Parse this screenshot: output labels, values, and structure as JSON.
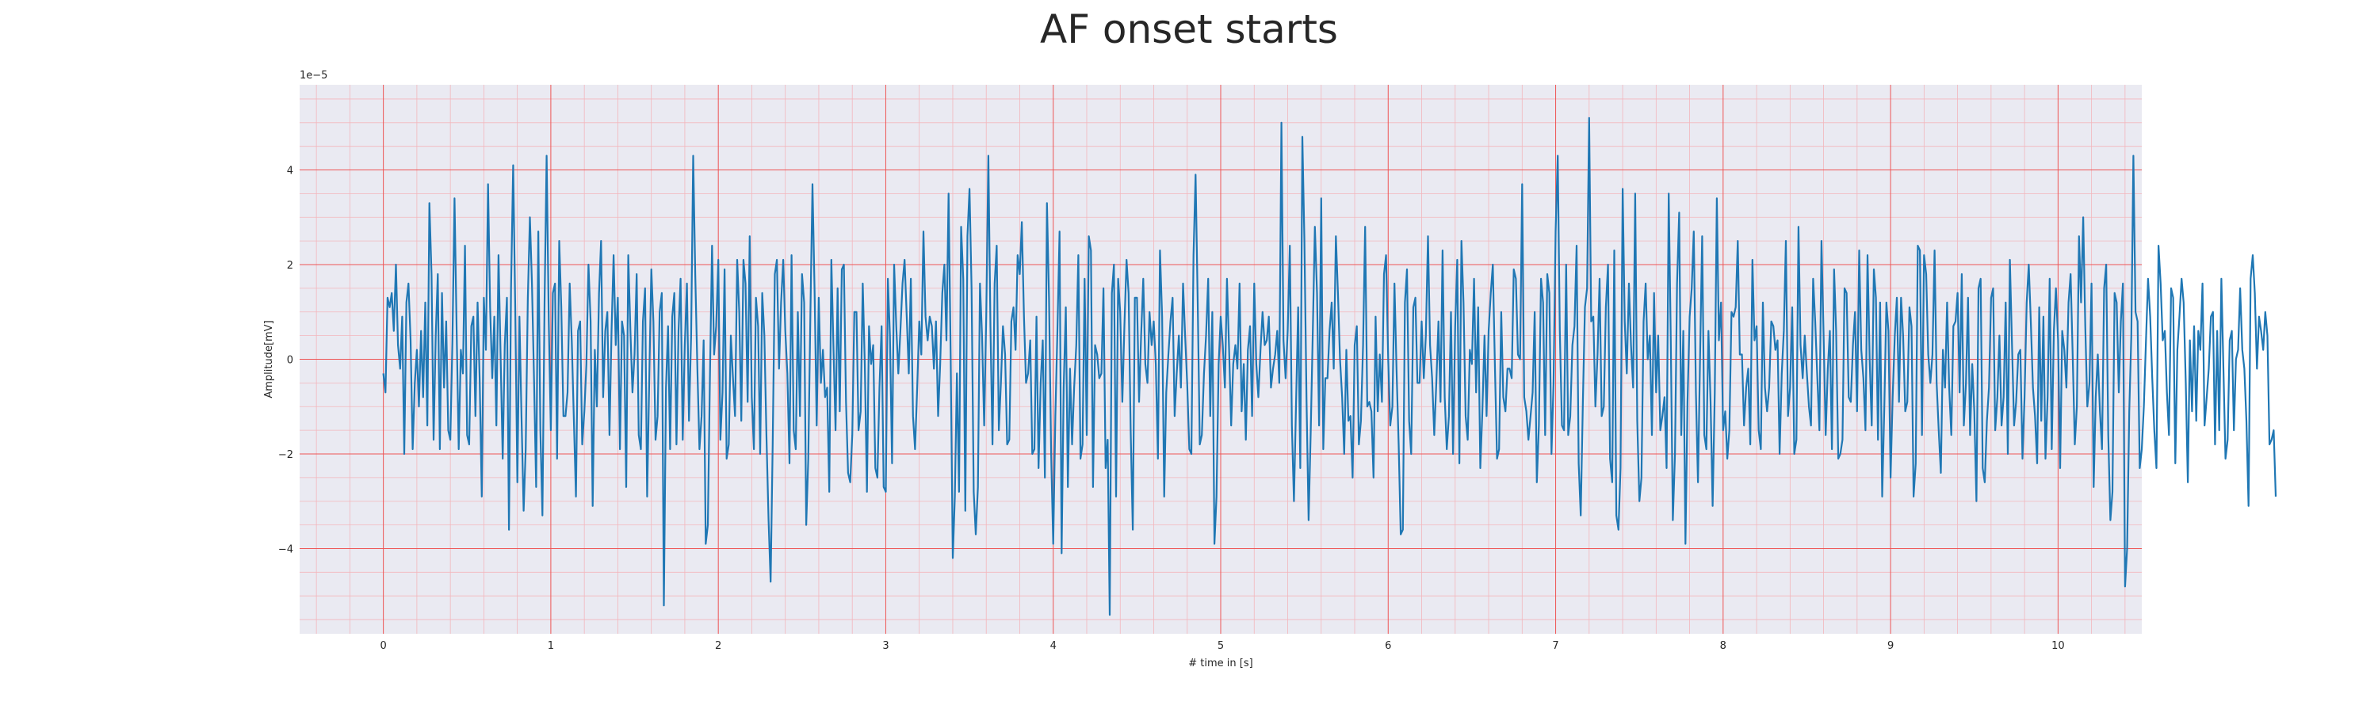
{
  "chart_data": {
    "type": "line",
    "title": "AF onset starts",
    "xlabel": "# time in [s]",
    "ylabel": "Amplitude[mV]",
    "y_offset_text": "1e−5",
    "xlim": [
      -0.5,
      10.5
    ],
    "ylim": [
      -5.8,
      5.8
    ],
    "y_scale_factor": 1e-05,
    "xticks": [
      0,
      1,
      2,
      3,
      4,
      5,
      6,
      7,
      8,
      9,
      10
    ],
    "yticks": [
      -4,
      -2,
      0,
      2,
      4
    ],
    "grid": true,
    "minor_grid": true,
    "colors": {
      "line": "#1f77b4",
      "grid_major": "#ee5555",
      "grid_minor": "#f3b6bc",
      "background": "#eaeaf2"
    },
    "series": [
      {
        "sample_interval_s": 0.0125,
        "values": [
          -0.3,
          -0.7,
          1.3,
          1.1,
          1.4,
          0.6,
          2.0,
          0.3,
          -0.2,
          0.9,
          -2.0,
          1.2,
          1.6,
          0.4,
          -1.9,
          -0.5,
          0.2,
          -1.0,
          0.6,
          -0.8,
          1.2,
          -1.4,
          3.3,
          1.8,
          -1.7,
          0.5,
          1.8,
          -1.9,
          1.4,
          -0.6,
          0.8,
          -1.5,
          -1.7,
          0.4,
          3.4,
          0.6,
          -1.9,
          0.2,
          -0.3,
          2.4,
          -1.6,
          -1.8,
          0.7,
          0.9,
          -1.2,
          1.2,
          -0.4,
          -2.9,
          1.3,
          0.2,
          3.7,
          1.1,
          -0.4,
          0.9,
          -1.4,
          2.2,
          0.1,
          -2.1,
          0.3,
          1.3,
          -3.6,
          1.5,
          4.1,
          1.1,
          -2.6,
          0.9,
          -1.2,
          -3.2,
          -1.9,
          1.3,
          3.0,
          1.6,
          -0.5,
          -2.7,
          2.7,
          -1.5,
          -3.3,
          1.2,
          4.3,
          0.8,
          -1.5,
          1.4,
          1.6,
          -2.1,
          2.5,
          1.1,
          -1.2,
          -1.2,
          -0.7,
          1.6,
          0.4,
          -1.3,
          -2.9,
          0.6,
          0.8,
          -1.8,
          -1.1,
          -0.1,
          2.0,
          0.8,
          -3.1,
          0.2,
          -1.0,
          1.4,
          2.5,
          -0.8,
          0.6,
          1.0,
          -1.6,
          0.6,
          2.2,
          0.3,
          1.3,
          -1.9,
          0.8,
          0.5,
          -2.7,
          2.2,
          0.6,
          -0.7,
          0.1,
          1.8,
          -1.6,
          -1.9,
          0.8,
          1.5,
          -2.9,
          -0.5,
          1.9,
          0.8,
          -1.7,
          -1.2,
          1.0,
          1.4,
          -5.2,
          -0.6,
          0.7,
          -1.9,
          0.9,
          1.4,
          -1.8,
          0.6,
          1.7,
          -1.7,
          0.3,
          1.6,
          -1.3,
          0.5,
          4.3,
          1.8,
          -0.2,
          -1.9,
          -1.2,
          0.4,
          -3.9,
          -3.5,
          -0.4,
          2.4,
          0.1,
          0.7,
          2.1,
          -1.7,
          -0.7,
          1.9,
          -2.1,
          -1.8,
          0.5,
          -0.4,
          -1.2,
          2.1,
          1.0,
          -1.3,
          2.1,
          1.6,
          -0.9,
          2.6,
          -0.8,
          -1.9,
          1.3,
          0.7,
          -2.0,
          1.4,
          0.5,
          -1.6,
          -3.4,
          -4.7,
          -1.8,
          1.8,
          2.1,
          -0.2,
          1.2,
          2.1,
          0.6,
          -0.3,
          -2.2,
          2.2,
          -1.5,
          -1.9,
          1.0,
          -1.2,
          1.8,
          1.2,
          -3.5,
          -2.1,
          1.0,
          3.7,
          1.4,
          -1.4,
          1.3,
          -0.5,
          0.2,
          -0.8,
          -0.6,
          -2.8,
          2.1,
          0.3,
          -1.5,
          1.5,
          -1.1,
          1.9,
          2.0,
          -0.9,
          -2.4,
          -2.6,
          -1.6,
          1.0,
          1.0,
          -1.5,
          -1.1,
          1.6,
          -0.1,
          -2.8,
          0.7,
          -0.1,
          0.3,
          -2.3,
          -2.5,
          -0.6,
          0.7,
          -2.7,
          -2.8,
          1.7,
          0.5,
          -2.2,
          2.0,
          0.7,
          -0.3,
          0.6,
          1.6,
          2.1,
          0.9,
          -0.3,
          1.7,
          -1.2,
          -1.9,
          -0.6,
          0.8,
          0.1,
          2.7,
          0.9,
          0.4,
          0.9,
          0.7,
          -0.2,
          0.8,
          -1.2,
          -0.1,
          1.4,
          2.0,
          0.4,
          3.5,
          0.1,
          -4.2,
          -2.9,
          -0.3,
          -2.8,
          2.8,
          1.7,
          -3.2,
          2.6,
          3.6,
          1.5,
          -2.8,
          -3.7,
          -2.7,
          1.6,
          0.5,
          -1.4,
          0.9,
          4.3,
          0.7,
          -1.8,
          1.6,
          2.4,
          -1.5,
          -0.5,
          0.7,
          0.1,
          -1.8,
          -1.7,
          0.8,
          1.1,
          0.2,
          2.2,
          1.8,
          2.9,
          0.9,
          -0.5,
          -0.3,
          0.4,
          -2.0,
          -1.9,
          0.9,
          -2.3,
          -0.5,
          0.4,
          -2.5,
          3.3,
          1.3,
          -2.0,
          -3.9,
          -1.2,
          0.6,
          2.7,
          -4.1,
          -0.6,
          1.1,
          -2.7,
          -0.2,
          -1.8,
          -0.6,
          0.3,
          2.2,
          -2.1,
          -1.8,
          1.7,
          -1.6,
          2.6,
          2.3,
          -2.7,
          0.3,
          0.1,
          -0.4,
          -0.3,
          1.5,
          -2.3,
          -1.7,
          -5.4,
          1.4,
          2.0,
          -2.9,
          1.7,
          1.0,
          -0.9,
          0.7,
          2.1,
          1.4,
          -1.5,
          -3.6,
          1.3,
          1.3,
          -0.9,
          0.5,
          1.7,
          -0.1,
          -0.5,
          1.0,
          0.3,
          0.8,
          -0.1,
          -2.1,
          2.3,
          0.9,
          -2.9,
          -0.7,
          0.1,
          0.8,
          1.3,
          -1.2,
          -0.3,
          0.5,
          -0.6,
          1.6,
          0.5,
          -0.5,
          -1.9,
          -2.0,
          2.2,
          3.9,
          1.2,
          -1.8,
          -1.6,
          -0.3,
          0.5,
          1.7,
          -1.2,
          1.0,
          -3.9,
          -2.9,
          -0.1,
          0.9,
          0.3,
          -0.6,
          1.7,
          0.2,
          -1.4,
          -0.1,
          0.3,
          -0.2,
          1.6,
          -1.1,
          -0.1,
          -1.7,
          0.2,
          0.7,
          -1.2,
          1.6,
          -0.1,
          -0.8,
          0.2,
          1.0,
          0.3,
          0.4,
          0.9,
          -0.6,
          -0.2,
          0.1,
          0.6,
          -0.5,
          5.0,
          0.4,
          -0.4,
          0.6,
          2.4,
          -1.4,
          -3.0,
          -0.9,
          1.1,
          -2.3,
          4.7,
          2.5,
          -0.9,
          -3.4,
          -1.5,
          0.6,
          2.8,
          1.4,
          -1.4,
          3.4,
          -1.9,
          -0.4,
          -0.4,
          0.6,
          1.2,
          -0.2,
          2.6,
          1.4,
          0.0,
          -0.8,
          -2.0,
          0.2,
          -1.3,
          -1.2,
          -2.5,
          0.3,
          0.7,
          -1.8,
          -1.3,
          0.3,
          2.8,
          -1.0,
          -0.9,
          -1.1,
          -2.5,
          0.9,
          -1.1,
          0.1,
          -0.9,
          1.8,
          2.2,
          0.0,
          -1.4,
          -1.0,
          1.6,
          -0.2,
          -1.8,
          -3.7,
          -3.6,
          1.2,
          1.9,
          -1.3,
          -2.0,
          1.1,
          1.3,
          -0.5,
          -0.5,
          0.8,
          -0.4,
          0.5,
          2.6,
          0.3,
          -0.4,
          -1.6,
          -0.5,
          0.8,
          -0.9,
          2.3,
          -0.8,
          -1.9,
          -1.2,
          1.0,
          -2.0,
          0.7,
          2.1,
          -2.2,
          2.5,
          1.2,
          -1.2,
          -1.7,
          0.2,
          -0.1,
          1.7,
          -0.7,
          1.1,
          -2.3,
          -1.1,
          0.5,
          -1.2,
          0.6,
          1.4,
          2.0,
          -0.2,
          -2.1,
          -1.9,
          1.0,
          -0.8,
          -1.1,
          -0.2,
          -0.2,
          -0.4,
          1.9,
          1.7,
          0.1,
          0.0,
          3.7,
          -0.8,
          -1.1,
          -1.7,
          -1.2,
          -0.7,
          1.0,
          -2.6,
          -1.4,
          1.7,
          1.2,
          -1.6,
          1.8,
          1.4,
          -2.0,
          -0.5,
          2.7,
          4.3,
          0.6,
          -1.4,
          -1.5,
          2.0,
          -1.6,
          -1.2,
          0.3,
          0.7,
          2.4,
          -2.2,
          -3.3,
          -0.9,
          1.1,
          1.5,
          5.1,
          0.8,
          0.9,
          -1.0,
          0.1,
          1.7,
          -1.2,
          -1.0,
          1.1,
          2.0,
          -2.1,
          -2.6,
          2.3,
          -3.3,
          -3.6,
          -2.3,
          3.6,
          0.8,
          -0.3,
          1.6,
          0.3,
          -0.6,
          3.5,
          -1.3,
          -3.0,
          -2.5,
          0.8,
          1.6,
          0.0,
          0.5,
          -1.6,
          1.4,
          -0.7,
          0.5,
          -1.5,
          -1.2,
          -0.8,
          -2.3,
          3.5,
          0.4,
          -3.4,
          -2.0,
          1.6,
          3.1,
          -1.6,
          0.6,
          -3.9,
          -0.9,
          0.9,
          1.5,
          2.7,
          -0.7,
          -2.6,
          0.1,
          2.6,
          -1.6,
          -1.9,
          0.6,
          -0.9,
          -3.1,
          -0.7,
          3.4,
          0.4,
          1.2,
          -1.5,
          -1.1,
          -2.1,
          -1.5,
          1.0,
          0.9,
          1.1,
          2.5,
          0.1,
          0.1,
          -1.4,
          -0.6,
          -0.2,
          -1.8,
          2.1,
          0.4,
          0.7,
          -1.5,
          -1.9,
          1.2,
          -0.6,
          -1.1,
          -0.6,
          0.8,
          0.7,
          0.2,
          0.4,
          -2.0,
          -0.3,
          0.6,
          2.5,
          -1.2,
          -0.6,
          1.1,
          -2.0,
          -1.7,
          2.8,
          0.3,
          -0.4,
          0.5,
          -0.3,
          -1.0,
          -1.4,
          1.7,
          0.8,
          -0.4,
          -1.5,
          2.5,
          0.5,
          -1.6,
          -0.2,
          0.6,
          -1.9,
          1.9,
          0.6,
          -2.1,
          -2.0,
          -1.7,
          1.5,
          1.4,
          -0.8,
          -0.9,
          0.3,
          1.0,
          -1.1,
          2.3,
          0.2,
          -0.4,
          -1.5,
          2.2,
          0.0,
          -1.4,
          1.9,
          1.3,
          -1.7,
          1.2,
          -2.9,
          -1.0,
          1.2,
          0.6,
          -2.5,
          -0.8,
          0.5,
          1.3,
          -0.9,
          1.3,
          0.5,
          -1.1,
          -0.9,
          1.1,
          0.7,
          -2.9,
          -2.2,
          2.4,
          2.3,
          -1.6,
          2.2,
          1.8,
          0.1,
          -0.5,
          0.1,
          2.3,
          -0.5,
          -1.5,
          -2.4,
          0.2,
          -0.6,
          1.2,
          -0.6,
          -1.6,
          0.7,
          0.8,
          1.4,
          -0.7,
          1.8,
          -1.4,
          -0.5,
          1.3,
          -1.6,
          -0.1,
          -1.1,
          -3.0,
          1.5,
          1.7,
          -2.3,
          -2.6,
          -1.3,
          -0.6,
          1.3,
          1.5,
          -1.5,
          -0.8,
          0.5,
          -1.4,
          -0.8,
          1.2,
          -2.0,
          2.1,
          0.3,
          -1.4,
          -0.9,
          0.1,
          0.2,
          -2.1,
          -0.8,
          1.2,
          2.0,
          0.8,
          -0.6,
          -1.2,
          -2.2,
          1.1,
          -1.3,
          0.9,
          -2.1,
          -0.8,
          1.7,
          -1.9,
          0.6,
          1.5,
          0.4,
          -2.3,
          0.6,
          0.2,
          -0.6,
          1.2,
          1.8,
          0.1,
          -1.8,
          -1.0,
          2.6,
          1.2,
          3.0,
          0.7,
          -1.0,
          -0.5,
          1.6,
          -2.7,
          -0.8,
          0.1,
          -1.1,
          -1.9,
          1.5,
          2.0,
          -1.6,
          -3.4,
          -2.8,
          1.4,
          1.2,
          -0.7,
          0.8,
          1.6,
          -4.8,
          -4.0,
          -1.1,
          0.5,
          4.3,
          1.0,
          0.8,
          -2.3,
          -1.9,
          -1.0,
          0.4,
          1.7,
          0.9,
          -0.4,
          -1.5,
          -2.3,
          2.4,
          1.6,
          0.4,
          0.6,
          -0.7,
          -1.6,
          1.5,
          1.3,
          -2.2,
          0.2,
          0.9,
          1.7,
          1.2,
          -0.5,
          -2.6,
          0.4,
          -1.1,
          0.7,
          -1.3,
          0.6,
          0.2,
          1.6,
          -1.4,
          -0.8,
          -0.2,
          0.9,
          1.0,
          -1.8,
          0.6,
          -1.5,
          1.7,
          -0.2,
          -2.1,
          -1.7,
          0.4,
          0.6,
          -1.5,
          0.0,
          0.2,
          1.5,
          0.2,
          -0.2,
          -1.3,
          -3.1,
          1.7,
          2.2,
          1.4,
          -0.2,
          0.9,
          0.6,
          0.2,
          1.0,
          0.5,
          -1.8,
          -1.7,
          -1.5,
          -2.9
        ]
      }
    ]
  }
}
